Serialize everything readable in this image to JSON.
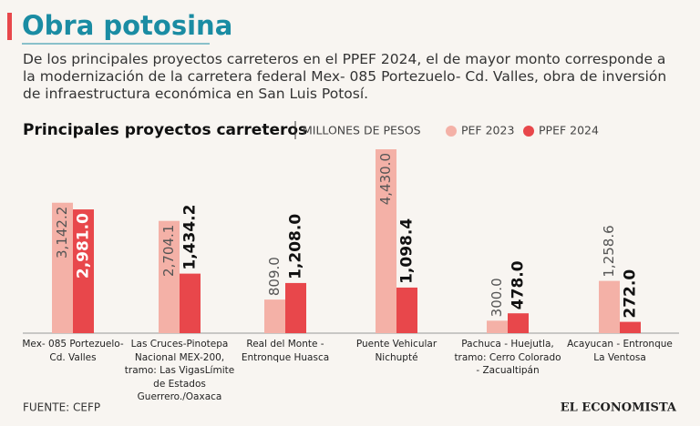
{
  "chart_data": {
    "type": "bar",
    "title": "Obra potosina",
    "description": "De los principales proyectos carreteros en el PPEF 2024, el de mayor monto corresponde a la modernización de la carretera federal Mex- 085 Portezuelo- Cd. Valles, obra de inversión de infraestructura económica en San Luis Potosí.",
    "subtitle": "Principales proyectos carreteros",
    "unit": "MILLONES DE PESOS",
    "source": "FUENTE: CEFP",
    "brand": "EL ECONOMISTA",
    "categories": [
      "Mex- 085 Portezuelo- Cd. Valles",
      "Las Cruces-Pinotepa Nacional MEX-200, tramo: Las VigasLímite de Estados Guerrero./Oaxaca",
      "Real del Monte - Entronque Huasca",
      "Puente Vehicular Nichupté",
      "Pachuca - Huejutla, tramo: Cerro Colorado - Zacualtipán",
      "Acayucan - Entronque La Ventosa"
    ],
    "series": [
      {
        "name": "PEF 2023",
        "color": "#f4b1a7",
        "values": [
          3142.2,
          2704.1,
          809.0,
          4430.0,
          300.0,
          1258.6
        ],
        "value_labels": [
          "3,142.2",
          "2,704.1",
          "809.0",
          "4,430.0",
          "300.0",
          "1,258.6"
        ]
      },
      {
        "name": "PPEF 2024",
        "color": "#e8474b",
        "values": [
          2981.0,
          1434.2,
          1208.0,
          1098.4,
          478.0,
          272.0
        ],
        "value_labels": [
          "2,981.0",
          "1,434.2",
          "1,208.0",
          "1,098.4",
          "478.0",
          "272.0"
        ]
      }
    ]
  }
}
